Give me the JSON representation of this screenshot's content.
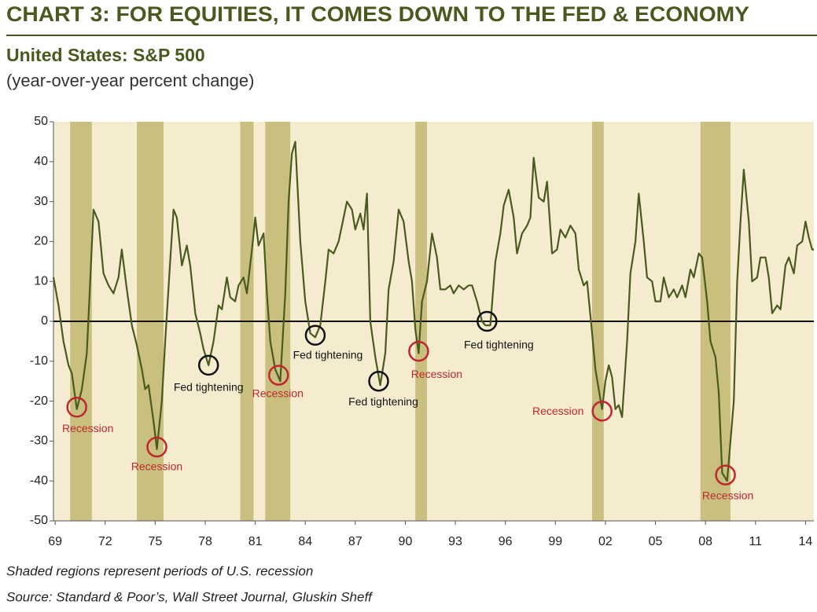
{
  "chart_data": {
    "type": "line",
    "title": "CHART 3: FOR EQUITIES, IT COMES DOWN TO THE FED & ECONOMY",
    "subtitle": "United States: S&P 500",
    "y_label": "(year-over-year percent change)",
    "footnote": "Shaded regions represent periods of U.S. recession",
    "source": "Source: Standard & Poor’s, Wall Street Journal, Gluskin Sheff",
    "xlim": [
      1968.9,
      2014.5
    ],
    "ylim": [
      -50,
      50
    ],
    "yticks": [
      -50,
      -40,
      -30,
      -20,
      -10,
      0,
      10,
      20,
      30,
      40,
      50
    ],
    "xticks": [
      {
        "value": 1969,
        "label": "69"
      },
      {
        "value": 1972,
        "label": "72"
      },
      {
        "value": 1975,
        "label": "75"
      },
      {
        "value": 1978,
        "label": "78"
      },
      {
        "value": 1981,
        "label": "81"
      },
      {
        "value": 1984,
        "label": "84"
      },
      {
        "value": 1987,
        "label": "87"
      },
      {
        "value": 1990,
        "label": "90"
      },
      {
        "value": 1993,
        "label": "93"
      },
      {
        "value": 1996,
        "label": "96"
      },
      {
        "value": 1999,
        "label": "99"
      },
      {
        "value": 2002,
        "label": "02"
      },
      {
        "value": 2005,
        "label": "05"
      },
      {
        "value": 2008,
        "label": "08"
      },
      {
        "value": 2011,
        "label": "11"
      },
      {
        "value": 2014,
        "label": "14"
      }
    ],
    "recessions": [
      [
        1969.9,
        1971.2
      ],
      [
        1973.9,
        1975.5
      ],
      [
        1980.1,
        1980.9
      ],
      [
        1981.6,
        1983.1
      ],
      [
        1990.6,
        1991.3
      ],
      [
        2001.2,
        2001.9
      ],
      [
        2007.7,
        2009.5
      ]
    ],
    "recession_color": "#c9c080",
    "background": "#f5ecd0",
    "x": [
      1968.9,
      1969.2,
      1969.5,
      1969.8,
      1970.0,
      1970.3,
      1970.6,
      1970.9,
      1971.1,
      1971.3,
      1971.6,
      1971.9,
      1972.2,
      1972.5,
      1972.8,
      1973.0,
      1973.3,
      1973.6,
      1973.9,
      1974.2,
      1974.4,
      1974.6,
      1974.9,
      1975.1,
      1975.4,
      1975.6,
      1975.9,
      1976.1,
      1976.3,
      1976.6,
      1976.9,
      1977.1,
      1977.4,
      1977.7,
      1977.9,
      1978.2,
      1978.5,
      1978.8,
      1979.0,
      1979.3,
      1979.5,
      1979.8,
      1980.0,
      1980.3,
      1980.5,
      1980.8,
      1981.0,
      1981.2,
      1981.5,
      1981.7,
      1981.9,
      1982.2,
      1982.5,
      1982.8,
      1983.0,
      1983.2,
      1983.4,
      1983.7,
      1984.0,
      1984.3,
      1984.6,
      1984.9,
      1985.2,
      1985.4,
      1985.7,
      1986.0,
      1986.3,
      1986.5,
      1986.8,
      1987.0,
      1987.3,
      1987.5,
      1987.7,
      1987.9,
      1988.2,
      1988.5,
      1988.8,
      1989.0,
      1989.3,
      1989.6,
      1989.9,
      1990.2,
      1990.4,
      1990.6,
      1990.8,
      1991.0,
      1991.3,
      1991.6,
      1991.9,
      1992.1,
      1992.4,
      1992.7,
      1992.9,
      1993.2,
      1993.5,
      1993.8,
      1994.0,
      1994.3,
      1994.6,
      1994.8,
      1995.1,
      1995.4,
      1995.7,
      1995.9,
      1996.2,
      1996.5,
      1996.7,
      1997.0,
      1997.3,
      1997.5,
      1997.7,
      1998.0,
      1998.3,
      1998.5,
      1998.8,
      1999.1,
      1999.3,
      1999.6,
      1999.9,
      2000.2,
      2000.4,
      2000.7,
      2000.9,
      2001.2,
      2001.4,
      2001.6,
      2001.8,
      2002.0,
      2002.2,
      2002.4,
      2002.6,
      2002.8,
      2003.0,
      2003.3,
      2003.5,
      2003.8,
      2004.0,
      2004.3,
      2004.5,
      2004.8,
      2005.0,
      2005.3,
      2005.5,
      2005.8,
      2006.1,
      2006.3,
      2006.6,
      2006.8,
      2007.1,
      2007.3,
      2007.6,
      2007.8,
      2008.1,
      2008.3,
      2008.6,
      2008.8,
      2009.0,
      2009.3,
      2009.5,
      2009.7,
      2009.9,
      2010.1,
      2010.3,
      2010.6,
      2010.8,
      2011.1,
      2011.3,
      2011.6,
      2011.8,
      2012.0,
      2012.3,
      2012.5,
      2012.8,
      2013.0,
      2013.3,
      2013.5,
      2013.8,
      2014.0,
      2014.2,
      2014.4,
      2014.5
    ],
    "series": [
      {
        "color": "#4a5a1f",
        "values": [
          11,
          4,
          -5,
          -11,
          -13,
          -22,
          -17,
          -8,
          10,
          28,
          25,
          12,
          9,
          7,
          11,
          18,
          8,
          -1,
          -6,
          -12,
          -17,
          -16,
          -25,
          -32,
          -20,
          -5,
          15,
          28,
          26,
          14,
          19,
          14,
          2,
          -3,
          -7,
          -11,
          -5,
          4,
          3,
          11,
          6,
          5,
          9,
          11,
          7,
          18,
          26,
          19,
          22,
          7,
          -5,
          -12,
          -15,
          7,
          30,
          42,
          45,
          20,
          5,
          -3,
          -4,
          -1,
          10,
          18,
          17,
          20,
          26,
          30,
          28,
          23,
          27,
          23,
          32,
          0,
          -9,
          -16,
          -8,
          8,
          15,
          28,
          25,
          15,
          10,
          -2,
          -8,
          5,
          10,
          22,
          16,
          8,
          8,
          9,
          7,
          9,
          8,
          9,
          9,
          5,
          0,
          -1,
          -1,
          15,
          22,
          29,
          33,
          26,
          17,
          22,
          24,
          26,
          41,
          31,
          30,
          35,
          17,
          18,
          23,
          21,
          24,
          22,
          13,
          9,
          10,
          -3,
          -12,
          -17,
          -22,
          -15,
          -11,
          -14,
          -22,
          -21,
          -24,
          -5,
          12,
          20,
          32,
          20,
          11,
          10,
          5,
          5,
          11,
          6,
          8,
          6,
          9,
          6,
          13,
          11,
          17,
          16,
          5,
          -5,
          -9,
          -18,
          -38,
          -40,
          -30,
          -20,
          10,
          25,
          38,
          25,
          10,
          11,
          16,
          16,
          11,
          2,
          4,
          3,
          14,
          16,
          12,
          19,
          20,
          25,
          21,
          18,
          18
        ]
      }
    ],
    "annotations": [
      {
        "text": "Recession",
        "x": 1970.3,
        "y": -21.5,
        "color": "#c0262c"
      },
      {
        "text": "Recession",
        "x": 1975.1,
        "y": -31.5,
        "color": "#c0262c"
      },
      {
        "text": "Fed tightening",
        "x": 1978.2,
        "y": -11,
        "color": "#111111"
      },
      {
        "text": "Recession",
        "x": 1982.4,
        "y": -13.5,
        "color": "#c0262c"
      },
      {
        "text": "Fed tightening",
        "x": 1984.6,
        "y": -3.5,
        "color": "#111111"
      },
      {
        "text": "Fed tightening",
        "x": 1988.4,
        "y": -15,
        "color": "#111111"
      },
      {
        "text": "Recession",
        "x": 1990.8,
        "y": -7.5,
        "color": "#c0262c"
      },
      {
        "text": "Fed tightening",
        "x": 1994.9,
        "y": 0,
        "color": "#111111"
      },
      {
        "text": "Recession",
        "x": 2001.8,
        "y": -22.5,
        "color": "#c0262c"
      },
      {
        "text": "Recession",
        "x": 2009.2,
        "y": -38.5,
        "color": "#c0262c"
      }
    ]
  }
}
